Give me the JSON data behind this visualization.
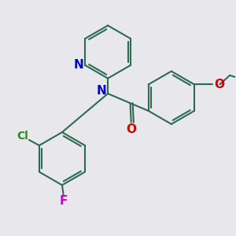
{
  "bg_color": "#e8e8ec",
  "bond_color": "#2d6b50",
  "N_color": "#0000cc",
  "O_color": "#cc0000",
  "Cl_color": "#228B22",
  "F_color": "#cc00cc",
  "line_width": 1.5,
  "font_size": 9,
  "dbo": 0.06,
  "xlim": [
    -1.8,
    2.8
  ],
  "ylim": [
    -2.2,
    2.2
  ]
}
